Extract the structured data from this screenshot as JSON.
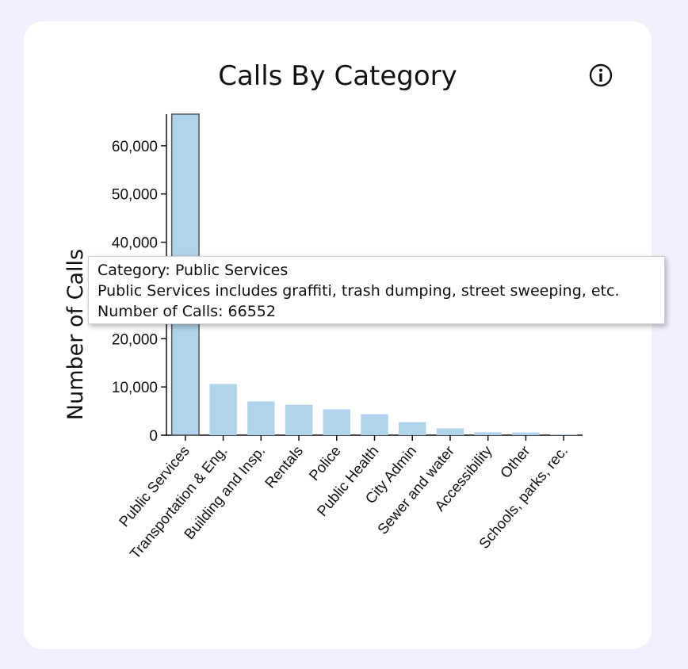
{
  "card": {
    "title": "Calls By Category"
  },
  "icons": {
    "info": "info-icon"
  },
  "tooltip": {
    "category_line": "Category: Public Services",
    "description_line": "Public Services includes graffiti, trash dumping, street sweeping, etc.",
    "count_line": "Number of Calls: 66552"
  },
  "colors": {
    "bar": "#aed3ea",
    "bar_highlight_stroke": "#555555",
    "background": "#f0f1fd",
    "card": "#ffffff"
  },
  "chart_data": {
    "type": "bar",
    "title": "Calls By Category",
    "xlabel": "",
    "ylabel": "Number of Calls",
    "ylim": [
      0,
      66552
    ],
    "yticks": [
      0,
      10000,
      20000,
      30000,
      40000,
      50000,
      60000
    ],
    "ytick_labels": [
      "0",
      "10,000",
      "20,000",
      "30,000",
      "40,000",
      "50,000",
      "60,000"
    ],
    "grid": false,
    "highlighted_category": "Public Services",
    "categories": [
      "Public Services",
      "Transportation & Eng.",
      "Building and Insp.",
      "Rentals",
      "Police",
      "Public Health",
      "City Admin",
      "Sewer and water",
      "Accessibility",
      "Other",
      "Schools, parks, rec."
    ],
    "values": [
      66552,
      10600,
      7000,
      6300,
      5350,
      4350,
      2700,
      1400,
      600,
      550,
      200
    ]
  }
}
